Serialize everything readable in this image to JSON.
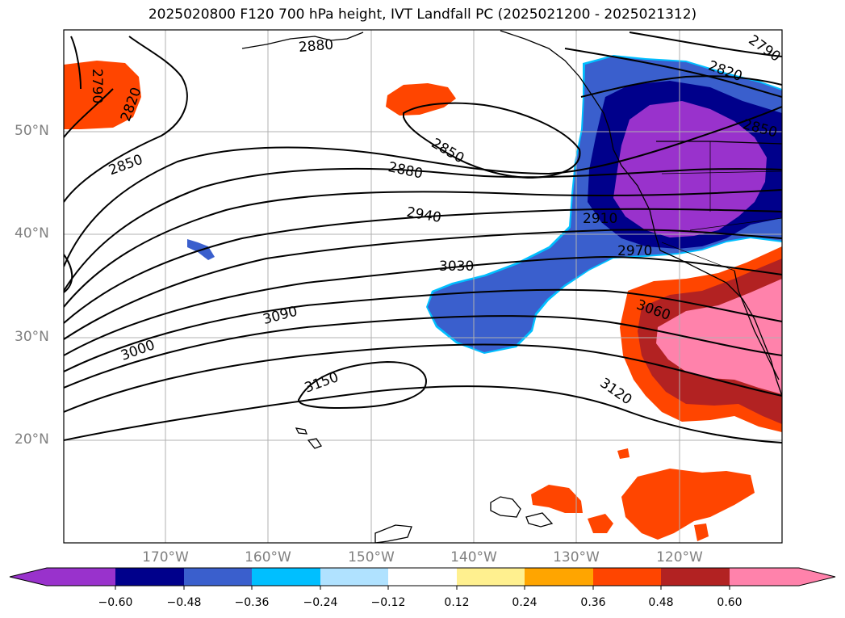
{
  "title": "2025020800 F120 700 hPa height, IVT Landfall PC (2025021200 - 2025021312)",
  "lat_labels": [
    "50°N",
    "40°N",
    "30°N",
    "20°N"
  ],
  "lon_labels": [
    "170°W",
    "160°W",
    "150°W",
    "140°W",
    "130°W",
    "120°W"
  ],
  "contour_labels": [
    "2790",
    "2820",
    "2850",
    "2850",
    "2880",
    "2880",
    "2910",
    "2940",
    "2970",
    "3000",
    "3030",
    "3060",
    "3090",
    "3120",
    "3150",
    "2820",
    "2850",
    "2790"
  ],
  "colorbar": {
    "ticks": [
      "−0.60",
      "−0.48",
      "−0.36",
      "−0.24",
      "−0.12",
      "0.12",
      "0.24",
      "0.36",
      "0.48",
      "0.60"
    ],
    "colors": [
      "#9932cc",
      "#00008b",
      "#3a5fcd",
      "#00bfff",
      "#b0e2ff",
      "#ffffff",
      "#fff08f",
      "#ffa500",
      "#ff4500",
      "#b22222",
      "#ff82ab"
    ]
  },
  "legend_colors": {
    "neg_lt_060": "#9932cc",
    "neg_048": "#00008b",
    "neg_036": "#3a5fcd",
    "neg_024": "#00bfff",
    "pos_036": "#ff4500",
    "pos_048": "#b22222",
    "pos_060": "#ff82ab",
    "contour": "#000000",
    "grid": "#b0b0b0"
  }
}
